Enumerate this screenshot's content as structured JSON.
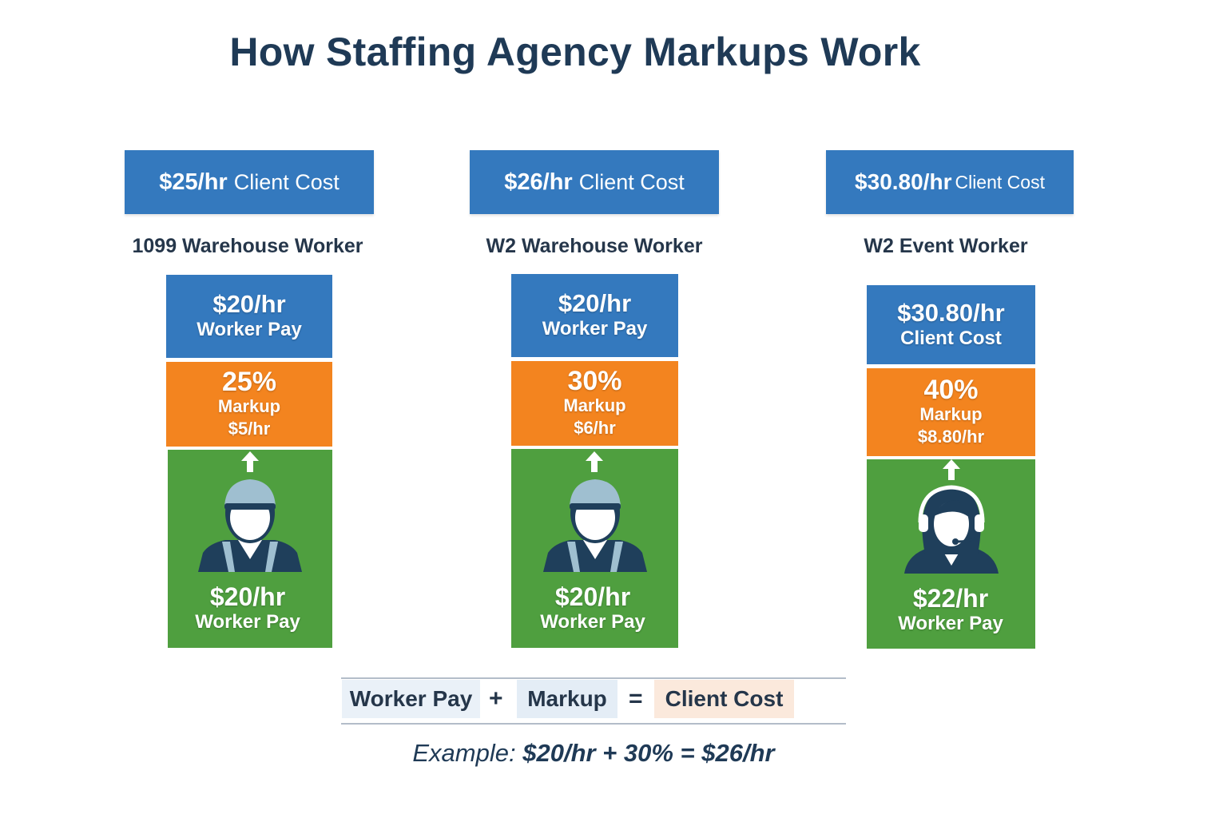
{
  "title": "How Staffing Agency Markups Work",
  "columns": [
    {
      "header_amount": "$25/hr",
      "header_label": "Client Cost",
      "worker_label": "1099 Warehouse Worker",
      "top_value": "$20/hr",
      "top_label": "Worker Pay",
      "markup_pct": "25%",
      "markup_label": "Markup",
      "markup_amount": "$5/hr",
      "worker_icon": "warehouse-worker-icon",
      "bottom_value": "$20/hr",
      "bottom_label": "Worker Pay"
    },
    {
      "header_amount": "$26/hr",
      "header_label": "Client Cost",
      "worker_label": "W2 Warehouse Worker",
      "top_value": "$20/hr",
      "top_label": "Worker Pay",
      "markup_pct": "30%",
      "markup_label": "Markup",
      "markup_amount": "$6/hr",
      "worker_icon": "warehouse-worker-icon",
      "bottom_value": "$20/hr",
      "bottom_label": "Worker Pay"
    },
    {
      "header_amount": "$30.80/hr",
      "header_label": "Client Cost",
      "worker_label": "W2 Event Worker",
      "top_value": "$30.80/hr",
      "top_label": "Client Cost",
      "markup_pct": "40%",
      "markup_label": "Markup",
      "markup_amount": "$8.80/hr",
      "worker_icon": "headset-worker-icon",
      "bottom_value": "$22/hr",
      "bottom_label": "Worker Pay"
    }
  ],
  "formula": {
    "term1": "Worker Pay",
    "op1": "+",
    "term2": "Markup",
    "op2": "=",
    "term3": "Client Cost"
  },
  "example": {
    "label": "Example:",
    "expression": "$20/hr + 30% = $26/hr"
  },
  "colors": {
    "blue": "#3479be",
    "orange": "#f3841f",
    "green": "#4f9f3f",
    "navy": "#1f3a56"
  }
}
